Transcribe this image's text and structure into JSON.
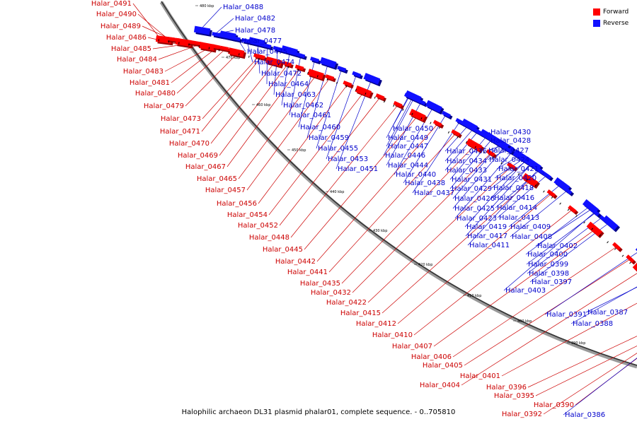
{
  "legend": {
    "forward_label": "Forward",
    "reverse_label": "Reverse",
    "forward_color": "#ff0000",
    "reverse_color": "#1010ff"
  },
  "caption": "Halophilic archaeon DL31 plasmid phalar01, complete sequence. - 0..705810",
  "ticks": [
    "480 kbp",
    "470 kbp",
    "460 kbp",
    "450 kbp",
    "440 kbp",
    "430 kbp",
    "420 kbp",
    "410 kbp",
    "400 kbp",
    "390 kbp"
  ],
  "forward_genes": [
    "Halar_0491",
    "Halar_0490",
    "Halar_0489",
    "Halar_0486",
    "Halar_0485",
    "Halar_0484",
    "Halar_0483",
    "Halar_0481",
    "Halar_0480",
    "Halar_0479",
    "Halar_0473",
    "Halar_0471",
    "Halar_0470",
    "Halar_0469",
    "Halar_0467",
    "Halar_0465",
    "Halar_0457",
    "Halar_0456",
    "Halar_0454",
    "Halar_0452",
    "Halar_0448",
    "Halar_0445",
    "Halar_0442",
    "Halar_0441",
    "Halar_0435",
    "Halar_0432",
    "Halar_0422",
    "Halar_0415",
    "Halar_0412",
    "Halar_0410",
    "Halar_0407",
    "Halar_0406",
    "Halar_0405",
    "Halar_0404",
    "Halar_0401",
    "Halar_0396",
    "Halar_0395",
    "Halar_0392",
    "Halar_0390"
  ],
  "reverse_genes": [
    "Halar_0488",
    "Halar_0482",
    "Halar_0478",
    "Halar_0477",
    "Halar_0475",
    "Halar_0474",
    "Halar_0472",
    "Halar_0464",
    "Halar_0463",
    "Halar_0462",
    "Halar_0461",
    "Halar_0460",
    "Halar_0459",
    "Halar_0455",
    "Halar_0453",
    "Halar_0451",
    "Halar_0450",
    "Halar_0449",
    "Halar_0447",
    "Halar_0446",
    "Halar_0444",
    "Halar_0440",
    "Halar_0438",
    "Halar_0437",
    "Halar_0436",
    "Halar_0434",
    "Halar_0433",
    "Halar_0431",
    "Halar_0429",
    "Halar_0426",
    "Halar_0425",
    "Halar_0423",
    "Halar_0419",
    "Halar_0417",
    "Halar_0411",
    "Halar_0430",
    "Halar_0428",
    "Halar_0427",
    "Halar_0424",
    "Halar_0421",
    "Halar_0420",
    "Halar_0418",
    "Halar_0416",
    "Halar_0414",
    "Halar_0413",
    "Halar_0409",
    "Halar_0408",
    "Halar_0402",
    "Halar_0400",
    "Halar_0399",
    "Halar_0398",
    "Halar_0397",
    "Halar_0403",
    "Halar_0391",
    "Halar_0387",
    "Halar_0388",
    "Halar_0386"
  ]
}
